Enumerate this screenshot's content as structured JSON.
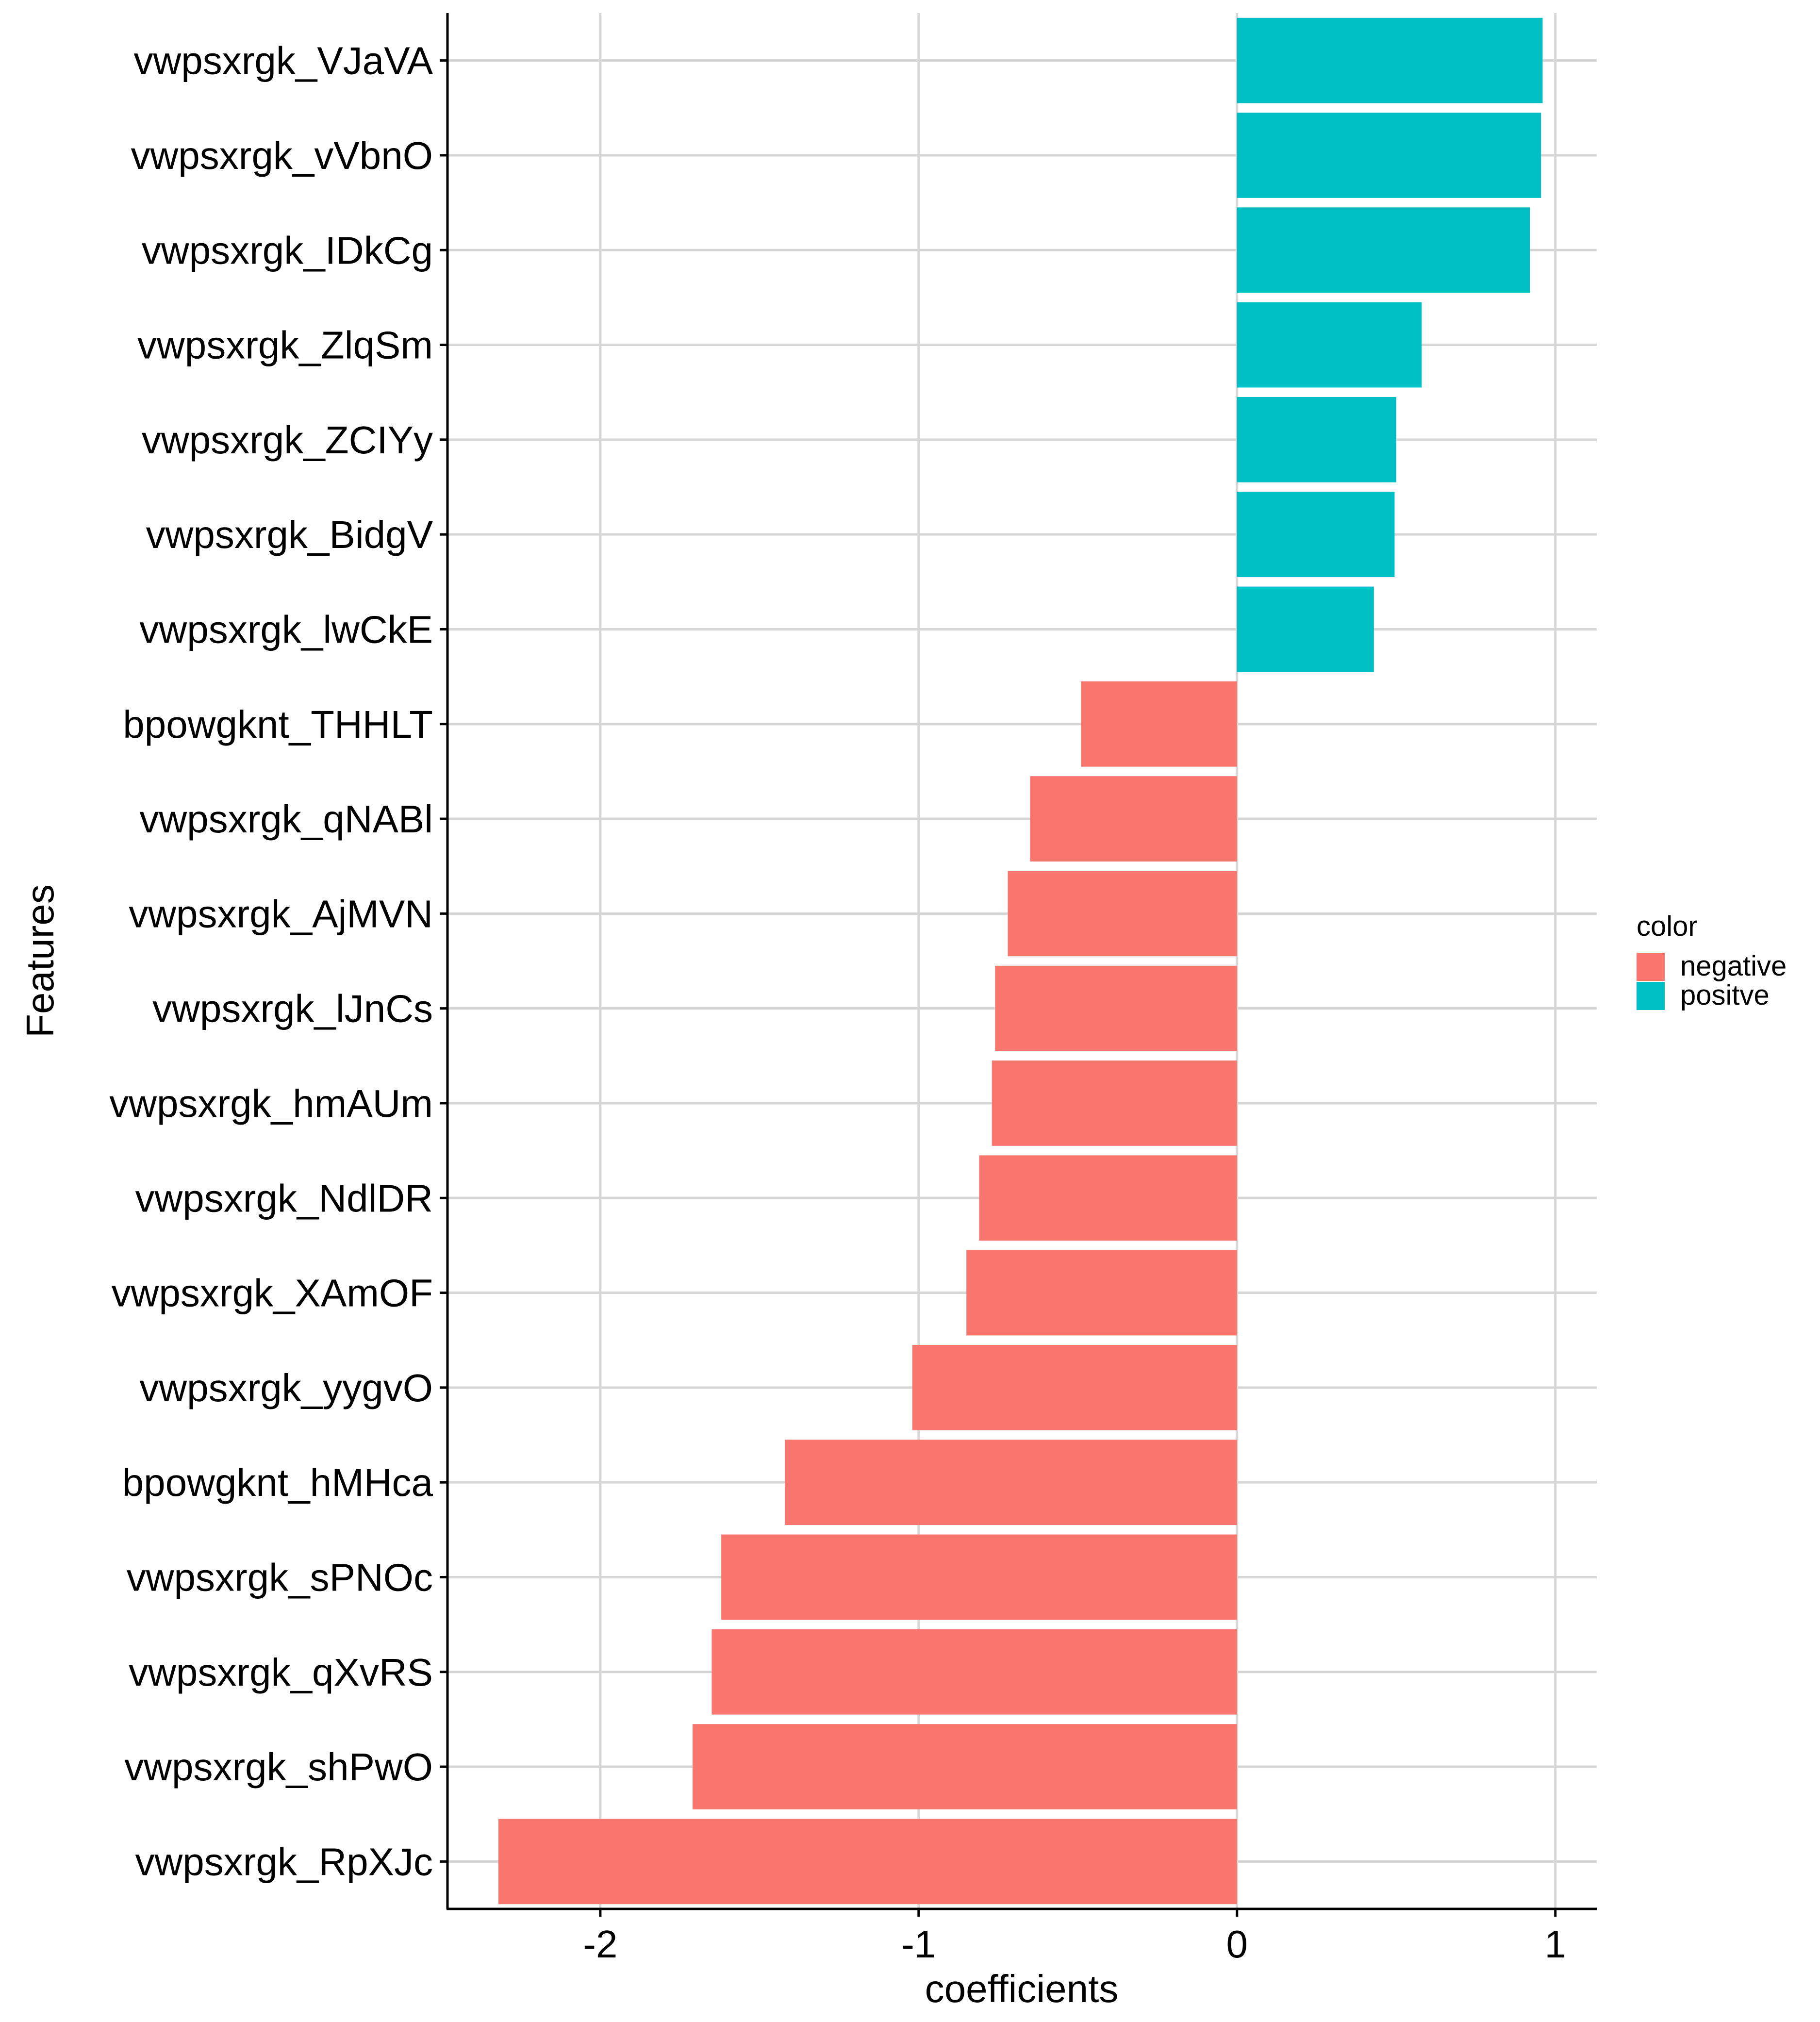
{
  "chart_data": {
    "type": "bar",
    "orientation": "horizontal",
    "xlabel": "coefficients",
    "ylabel": "Features",
    "xlim": [
      -2.48,
      1.13
    ],
    "xticks": [
      -2,
      -1,
      0,
      1
    ],
    "xtick_labels": [
      "-2",
      "-1",
      "0",
      "1"
    ],
    "grid": true,
    "legend": {
      "title": "color",
      "placement": "right",
      "entries": [
        {
          "label": "negative",
          "color": "#F8766D"
        },
        {
          "label": "positve",
          "color": "#00BFC4"
        }
      ]
    },
    "categories": [
      "vwpsxrgk_VJaVA",
      "vwpsxrgk_vVbnO",
      "vwpsxrgk_IDkCg",
      "vwpsxrgk_ZlqSm",
      "vwpsxrgk_ZCIYy",
      "vwpsxrgk_BidgV",
      "vwpsxrgk_lwCkE",
      "bpowgknt_THHLT",
      "vwpsxrgk_qNABl",
      "vwpsxrgk_AjMVN",
      "vwpsxrgk_lJnCs",
      "vwpsxrgk_hmAUm",
      "vwpsxrgk_NdlDR",
      "vwpsxrgk_XAmOF",
      "vwpsxrgk_yygvO",
      "bpowgknt_hMHca",
      "vwpsxrgk_sPNOc",
      "vwpsxrgk_qXvRS",
      "vwpsxrgk_shPwO",
      "vwpsxrgk_RpXJc"
    ],
    "values": [
      0.96,
      0.955,
      0.92,
      0.58,
      0.5,
      0.495,
      0.43,
      -0.49,
      -0.65,
      -0.72,
      -0.76,
      -0.77,
      -0.81,
      -0.85,
      -1.02,
      -1.42,
      -1.62,
      -1.65,
      -1.71,
      -2.32
    ],
    "colors": [
      "positve",
      "positve",
      "positve",
      "positve",
      "positve",
      "positve",
      "positve",
      "negative",
      "negative",
      "negative",
      "negative",
      "negative",
      "negative",
      "negative",
      "negative",
      "negative",
      "negative",
      "negative",
      "negative",
      "negative"
    ]
  }
}
